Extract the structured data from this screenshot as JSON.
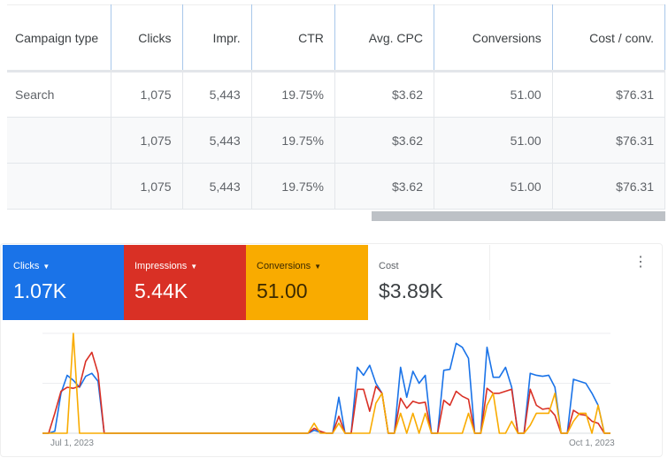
{
  "table": {
    "headers": [
      "Campaign type",
      "Clicks",
      "Impr.",
      "CTR",
      "Avg. CPC",
      "Conversions",
      "Cost / conv."
    ],
    "rows": [
      [
        "Search",
        "1,075",
        "5,443",
        "19.75%",
        "$3.62",
        "51.00",
        "$76.31"
      ],
      [
        "",
        "1,075",
        "5,443",
        "19.75%",
        "$3.62",
        "51.00",
        "$76.31"
      ],
      [
        "",
        "1,075",
        "5,443",
        "19.75%",
        "$3.62",
        "51.00",
        "$76.31"
      ]
    ]
  },
  "scorecards": [
    {
      "label": "Clicks",
      "value": "1.07K",
      "color": "#1a73e8",
      "dropdown": true
    },
    {
      "label": "Impressions",
      "value": "5.44K",
      "color": "#d93025",
      "dropdown": true
    },
    {
      "label": "Conversions",
      "value": "51.00",
      "color": "#f9ab00",
      "dropdown": true
    },
    {
      "label": "Cost",
      "value": "$3.89K",
      "color": "#ffffff",
      "dropdown": false
    }
  ],
  "chart_data": {
    "type": "line",
    "x_start_label": "Jul 1, 2023",
    "x_end_label": "Oct 1, 2023",
    "x_unit": "days since Jul 1, 2023",
    "y_unit": "relative (% of chart max)",
    "ylim": [
      0,
      100
    ],
    "grid": true,
    "series": [
      {
        "name": "Clicks",
        "color": "#1a73e8",
        "values": [
          0,
          0,
          2,
          40,
          58,
          53,
          46,
          57,
          60,
          52,
          0,
          0,
          0,
          0,
          0,
          0,
          0,
          0,
          0,
          0,
          0,
          0,
          0,
          0,
          0,
          0,
          0,
          0,
          0,
          0,
          0,
          0,
          0,
          0,
          0,
          0,
          0,
          0,
          0,
          0,
          0,
          0,
          0,
          0,
          3,
          1,
          0,
          0,
          36,
          0,
          0,
          66,
          58,
          68,
          50,
          40,
          0,
          0,
          66,
          36,
          62,
          50,
          58,
          0,
          0,
          63,
          64,
          90,
          86,
          75,
          0,
          0,
          86,
          56,
          56,
          66,
          46,
          0,
          0,
          60,
          58,
          57,
          58,
          46,
          0,
          0,
          54,
          52,
          50,
          40,
          28,
          0,
          0
        ]
      },
      {
        "name": "Impressions",
        "color": "#d93025",
        "values": [
          0,
          0,
          20,
          42,
          46,
          45,
          47,
          72,
          81,
          60,
          0,
          0,
          0,
          0,
          0,
          0,
          0,
          0,
          0,
          0,
          0,
          0,
          0,
          0,
          0,
          0,
          0,
          0,
          0,
          0,
          0,
          0,
          0,
          0,
          0,
          0,
          0,
          0,
          0,
          0,
          0,
          0,
          0,
          0,
          5,
          2,
          0,
          0,
          17,
          0,
          0,
          44,
          44,
          22,
          47,
          40,
          0,
          0,
          35,
          25,
          32,
          30,
          31,
          0,
          0,
          33,
          28,
          42,
          37,
          34,
          0,
          0,
          45,
          40,
          40,
          42,
          44,
          0,
          0,
          44,
          28,
          24,
          25,
          18,
          0,
          0,
          23,
          19,
          18,
          12,
          10,
          0,
          0
        ]
      },
      {
        "name": "Conversions",
        "color": "#f9ab00",
        "values": [
          0,
          0,
          0,
          0,
          0,
          100,
          0,
          0,
          0,
          0,
          0,
          0,
          0,
          0,
          0,
          0,
          0,
          0,
          0,
          0,
          0,
          0,
          0,
          0,
          0,
          0,
          0,
          0,
          0,
          0,
          0,
          0,
          0,
          0,
          0,
          0,
          0,
          0,
          0,
          0,
          0,
          0,
          0,
          0,
          10,
          0,
          0,
          0,
          10,
          0,
          0,
          0,
          0,
          0,
          30,
          40,
          0,
          0,
          20,
          0,
          20,
          0,
          20,
          0,
          0,
          0,
          0,
          0,
          0,
          20,
          0,
          0,
          28,
          40,
          0,
          0,
          12,
          0,
          0,
          8,
          20,
          20,
          20,
          40,
          0,
          0,
          12,
          20,
          20,
          0,
          28,
          0,
          0
        ]
      }
    ]
  }
}
